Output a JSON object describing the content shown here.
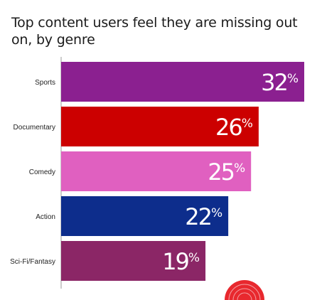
{
  "title": "Top content users feel they are missing out on, by genre",
  "chart_data": {
    "type": "bar",
    "orientation": "horizontal",
    "title": "Top content users feel they are missing out on, by genre",
    "xlabel": "",
    "ylabel": "",
    "unit": "%",
    "xlim": [
      0,
      32
    ],
    "grid": false,
    "categories": [
      "Sports",
      "Documentary",
      "Comedy",
      "Action",
      "Sci-Fi/Fantasy"
    ],
    "values": [
      32,
      26,
      25,
      22,
      19
    ],
    "colors": [
      "#8b2090",
      "#cc0000",
      "#e060c0",
      "#0d2d8c",
      "#8b2666"
    ]
  }
}
